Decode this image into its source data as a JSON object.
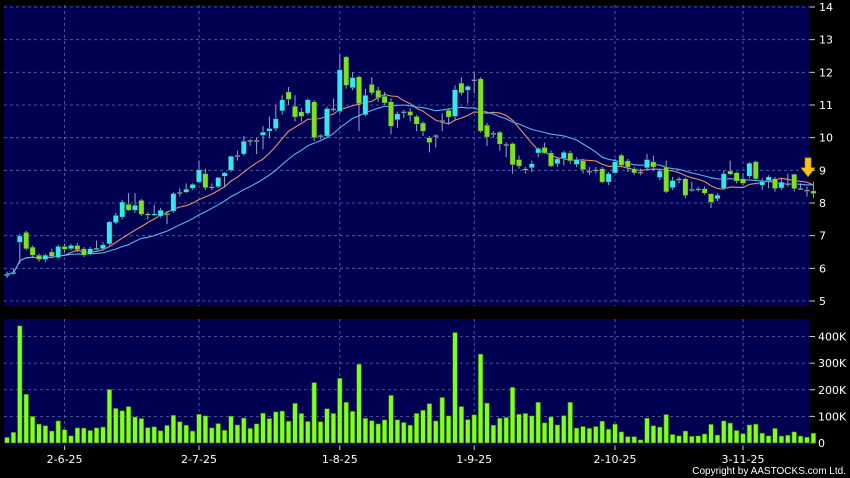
{
  "chart_data": {
    "type": "candlestick",
    "title": "",
    "price_axis": {
      "ylim": [
        5,
        14
      ],
      "ticks": [
        "5",
        "6",
        "7",
        "8",
        "9",
        "10",
        "11",
        "12",
        "13",
        "14"
      ],
      "side": "right",
      "grid": true
    },
    "volume_axis": {
      "ylim": [
        0,
        450
      ],
      "ticks": [
        {
          "value": 0,
          "label": "0"
        },
        {
          "value": 100,
          "label": "100K"
        },
        {
          "value": 200,
          "label": "200K"
        },
        {
          "value": 300,
          "label": "300K"
        },
        {
          "value": 400,
          "label": "400K"
        }
      ],
      "side": "right",
      "grid": true
    },
    "x_ticks": [
      {
        "date": "2025-06-02",
        "label": "2-6-25"
      },
      {
        "date": "2025-07-02",
        "label": "2-7-25"
      },
      {
        "date": "2025-08-01",
        "label": "1-8-25"
      },
      {
        "date": "2025-09-01",
        "label": "1-9-25"
      },
      {
        "date": "2025-10-02",
        "label": "2-10-25"
      },
      {
        "date": "2025-11-03",
        "label": "3-11-25"
      }
    ],
    "moving_averages": [
      {
        "period": 10,
        "color": "#e8906a"
      },
      {
        "period": 20,
        "color": "#5ab4f0"
      }
    ],
    "colors": {
      "up": "#33e8f2",
      "down": "#7fe021",
      "doji": "#9aa6c8",
      "volume": "#80ff20",
      "panel": "#000052",
      "grid": "#5a6aa8",
      "marker": "#ffc400"
    },
    "last_marker": "arrow-down",
    "candle_fields": [
      "date",
      "open",
      "high",
      "low",
      "close",
      "volume_k"
    ],
    "candles": [
      [
        "2025-05-20",
        5.8,
        5.9,
        5.7,
        5.82,
        21
      ],
      [
        "2025-05-21",
        5.85,
        6.0,
        5.8,
        5.88,
        40
      ],
      [
        "2025-05-22",
        6.8,
        7.05,
        6.14,
        6.99,
        440
      ],
      [
        "2025-05-23",
        7.1,
        7.15,
        6.55,
        6.6,
        183
      ],
      [
        "2025-05-26",
        6.65,
        6.7,
        6.35,
        6.4,
        100
      ],
      [
        "2025-05-27",
        6.4,
        6.45,
        6.2,
        6.27,
        71
      ],
      [
        "2025-05-28",
        6.27,
        6.45,
        6.2,
        6.4,
        65
      ],
      [
        "2025-05-29",
        6.5,
        6.6,
        6.3,
        6.37,
        45
      ],
      [
        "2025-05-30",
        6.33,
        6.72,
        6.3,
        6.67,
        83
      ],
      [
        "2025-06-02",
        6.67,
        6.75,
        6.5,
        6.58,
        50
      ],
      [
        "2025-06-03",
        6.6,
        6.75,
        6.55,
        6.7,
        27
      ],
      [
        "2025-06-04",
        6.7,
        6.78,
        6.5,
        6.57,
        57
      ],
      [
        "2025-06-05",
        6.6,
        6.65,
        6.35,
        6.4,
        56
      ],
      [
        "2025-06-06",
        6.43,
        6.65,
        6.4,
        6.6,
        47
      ],
      [
        "2025-06-09",
        6.6,
        6.85,
        6.55,
        6.62,
        57
      ],
      [
        "2025-06-10",
        6.6,
        6.8,
        6.55,
        6.72,
        60
      ],
      [
        "2025-06-11",
        6.75,
        7.45,
        6.7,
        7.42,
        201
      ],
      [
        "2025-06-12",
        7.4,
        7.7,
        7.35,
        7.62,
        130
      ],
      [
        "2025-06-13",
        7.57,
        8.1,
        7.5,
        8.03,
        121
      ],
      [
        "2025-06-16",
        7.96,
        8.3,
        7.75,
        7.78,
        137
      ],
      [
        "2025-06-17",
        7.78,
        8.3,
        7.7,
        7.93,
        98
      ],
      [
        "2025-06-18",
        8.08,
        8.12,
        7.6,
        7.65,
        92
      ],
      [
        "2025-06-19",
        7.67,
        7.72,
        7.5,
        7.65,
        58
      ],
      [
        "2025-06-20",
        7.65,
        7.95,
        7.6,
        7.67,
        61
      ],
      [
        "2025-06-23",
        7.6,
        7.85,
        7.55,
        7.78,
        46
      ],
      [
        "2025-06-24",
        7.68,
        7.75,
        7.35,
        7.66,
        66
      ],
      [
        "2025-06-25",
        7.75,
        8.33,
        7.7,
        8.29,
        104
      ],
      [
        "2025-06-26",
        8.33,
        8.45,
        8.2,
        8.33,
        80
      ],
      [
        "2025-06-27",
        8.33,
        8.6,
        8.3,
        8.42,
        67
      ],
      [
        "2025-06-30",
        8.45,
        8.6,
        8.4,
        8.57,
        45
      ],
      [
        "2025-07-02",
        8.64,
        9.3,
        8.6,
        9.02,
        108
      ],
      [
        "2025-07-03",
        8.9,
        9.05,
        8.4,
        8.47,
        102
      ],
      [
        "2025-07-04",
        8.5,
        8.6,
        8.4,
        8.5,
        57
      ],
      [
        "2025-07-07",
        8.5,
        8.8,
        8.45,
        8.78,
        73
      ],
      [
        "2025-07-08",
        8.82,
        8.95,
        8.5,
        8.92,
        48
      ],
      [
        "2025-07-09",
        9.0,
        9.45,
        8.95,
        9.43,
        101
      ],
      [
        "2025-07-10",
        9.46,
        9.6,
        9.3,
        9.46,
        68
      ],
      [
        "2025-07-11",
        9.5,
        10.05,
        9.45,
        9.89,
        94
      ],
      [
        "2025-07-14",
        9.92,
        9.95,
        9.75,
        9.92,
        55
      ],
      [
        "2025-07-15",
        9.92,
        10.0,
        9.5,
        9.92,
        72
      ],
      [
        "2025-07-16",
        10.07,
        10.35,
        9.65,
        10.17,
        112
      ],
      [
        "2025-07-17",
        10.2,
        10.65,
        10.0,
        10.28,
        92
      ],
      [
        "2025-07-18",
        10.28,
        11.0,
        10.2,
        10.58,
        117
      ],
      [
        "2025-07-21",
        10.82,
        11.3,
        10.7,
        11.16,
        120
      ],
      [
        "2025-07-22",
        11.4,
        11.55,
        11.0,
        11.17,
        82
      ],
      [
        "2025-07-23",
        10.96,
        11.3,
        10.5,
        10.63,
        149
      ],
      [
        "2025-07-24",
        10.79,
        10.9,
        10.5,
        10.65,
        111
      ],
      [
        "2025-07-25",
        10.75,
        11.2,
        10.7,
        11.16,
        81
      ],
      [
        "2025-07-28",
        11.1,
        11.15,
        9.9,
        10.0,
        227
      ],
      [
        "2025-07-29",
        10.07,
        10.1,
        9.95,
        10.07,
        80
      ],
      [
        "2025-07-30",
        10.05,
        10.95,
        10.0,
        10.89,
        129
      ],
      [
        "2025-07-31",
        10.89,
        11.2,
        10.8,
        10.89,
        111
      ],
      [
        "2025-08-01",
        10.8,
        12.55,
        10.75,
        12.08,
        243
      ],
      [
        "2025-08-04",
        12.47,
        12.5,
        11.5,
        11.6,
        153
      ],
      [
        "2025-08-05",
        11.53,
        12.0,
        11.45,
        11.84,
        119
      ],
      [
        "2025-08-06",
        11.86,
        11.9,
        10.2,
        11.04,
        296
      ],
      [
        "2025-08-07",
        10.7,
        11.5,
        10.65,
        11.3,
        93
      ],
      [
        "2025-08-08",
        11.63,
        11.85,
        11.3,
        11.37,
        84
      ],
      [
        "2025-08-11",
        11.45,
        11.55,
        11.1,
        11.22,
        72
      ],
      [
        "2025-08-12",
        11.27,
        11.4,
        11.0,
        11.06,
        87
      ],
      [
        "2025-08-13",
        11.1,
        11.2,
        10.1,
        10.35,
        179
      ],
      [
        "2025-08-14",
        10.55,
        10.8,
        10.3,
        10.73,
        87
      ],
      [
        "2025-08-15",
        10.8,
        10.85,
        10.6,
        10.8,
        77
      ],
      [
        "2025-08-18",
        10.8,
        10.9,
        10.5,
        10.68,
        67
      ],
      [
        "2025-08-19",
        10.65,
        10.7,
        10.2,
        10.41,
        111
      ],
      [
        "2025-08-20",
        10.45,
        10.5,
        10.05,
        10.2,
        123
      ],
      [
        "2025-08-21",
        10.0,
        10.05,
        9.55,
        9.85,
        148
      ],
      [
        "2025-08-22",
        10.07,
        10.1,
        9.7,
        10.07,
        83
      ],
      [
        "2025-08-25",
        10.53,
        10.75,
        10.2,
        10.53,
        171
      ],
      [
        "2025-08-26",
        10.84,
        10.9,
        10.4,
        10.63,
        102
      ],
      [
        "2025-08-27",
        10.65,
        11.6,
        10.55,
        11.47,
        415
      ],
      [
        "2025-08-28",
        11.67,
        11.85,
        11.3,
        11.37,
        137
      ],
      [
        "2025-08-29",
        11.45,
        11.6,
        11.05,
        11.57,
        88
      ],
      [
        "2025-09-01",
        11.78,
        12.0,
        11.35,
        11.78,
        106
      ],
      [
        "2025-09-02",
        11.8,
        11.85,
        10.15,
        10.2,
        334
      ],
      [
        "2025-09-03",
        10.38,
        10.45,
        9.75,
        10.02,
        150
      ],
      [
        "2025-09-04",
        10.14,
        10.2,
        10.0,
        10.14,
        67
      ],
      [
        "2025-09-05",
        10.17,
        10.2,
        9.6,
        9.8,
        93
      ],
      [
        "2025-09-08",
        9.8,
        9.85,
        9.4,
        9.8,
        96
      ],
      [
        "2025-09-09",
        9.82,
        9.85,
        8.9,
        9.17,
        209
      ],
      [
        "2025-09-10",
        9.33,
        9.45,
        9.05,
        9.13,
        108
      ],
      [
        "2025-09-11",
        9.05,
        9.1,
        8.9,
        9.05,
        111
      ],
      [
        "2025-09-12",
        9.08,
        9.3,
        8.95,
        9.2,
        102
      ],
      [
        "2025-09-15",
        9.53,
        9.7,
        9.4,
        9.67,
        153
      ],
      [
        "2025-09-16",
        9.7,
        9.85,
        9.5,
        9.53,
        76
      ],
      [
        "2025-09-17",
        9.53,
        9.6,
        9.1,
        9.13,
        98
      ],
      [
        "2025-09-18",
        9.2,
        9.4,
        9.1,
        9.35,
        68
      ],
      [
        "2025-09-19",
        9.36,
        9.6,
        9.15,
        9.55,
        103
      ],
      [
        "2025-09-22",
        9.53,
        9.6,
        9.2,
        9.29,
        153
      ],
      [
        "2025-09-23",
        9.18,
        9.4,
        9.1,
        9.33,
        56
      ],
      [
        "2025-09-24",
        9.29,
        9.35,
        8.9,
        9.02,
        62
      ],
      [
        "2025-09-25",
        8.98,
        9.1,
        8.85,
        8.98,
        55
      ],
      [
        "2025-09-26",
        9.02,
        9.1,
        8.9,
        9.02,
        62
      ],
      [
        "2025-09-29",
        9.05,
        9.1,
        8.6,
        8.64,
        82
      ],
      [
        "2025-09-30",
        8.64,
        8.95,
        8.55,
        8.9,
        52
      ],
      [
        "2025-10-02",
        8.92,
        9.35,
        8.9,
        9.26,
        71
      ],
      [
        "2025-10-03",
        9.46,
        9.5,
        9.1,
        9.15,
        42
      ],
      [
        "2025-10-06",
        9.29,
        9.35,
        8.95,
        9.1,
        24
      ],
      [
        "2025-10-08",
        9.05,
        9.1,
        8.85,
        8.92,
        24
      ],
      [
        "2025-10-09",
        8.95,
        9.05,
        8.85,
        8.95,
        12
      ],
      [
        "2025-10-10",
        9.08,
        9.5,
        9.0,
        9.33,
        93
      ],
      [
        "2025-10-13",
        9.26,
        9.45,
        9.0,
        9.1,
        65
      ],
      [
        "2025-10-14",
        8.78,
        9.05,
        8.7,
        8.98,
        60
      ],
      [
        "2025-10-15",
        9.1,
        9.3,
        8.3,
        8.34,
        107
      ],
      [
        "2025-10-16",
        8.47,
        8.8,
        8.4,
        8.69,
        32
      ],
      [
        "2025-10-17",
        8.74,
        8.8,
        8.6,
        8.74,
        27
      ],
      [
        "2025-10-20",
        8.74,
        8.78,
        8.15,
        8.23,
        45
      ],
      [
        "2025-10-21",
        8.42,
        8.65,
        8.35,
        8.42,
        25
      ],
      [
        "2025-10-22",
        8.44,
        8.5,
        8.35,
        8.44,
        27
      ],
      [
        "2025-10-23",
        8.44,
        8.5,
        8.25,
        8.3,
        34
      ],
      [
        "2025-10-24",
        8.28,
        8.3,
        7.85,
        8.02,
        70
      ],
      [
        "2025-10-27",
        8.13,
        8.3,
        8.05,
        8.24,
        30
      ],
      [
        "2025-10-28",
        8.44,
        9.0,
        8.4,
        8.9,
        83
      ],
      [
        "2025-10-30",
        8.98,
        9.3,
        8.85,
        8.88,
        75
      ],
      [
        "2025-10-31",
        8.93,
        8.95,
        8.6,
        8.67,
        47
      ],
      [
        "2025-11-03",
        8.74,
        8.9,
        8.55,
        8.6,
        35
      ],
      [
        "2025-11-04",
        8.82,
        9.25,
        8.75,
        9.22,
        68
      ],
      [
        "2025-11-05",
        9.26,
        9.3,
        8.7,
        8.74,
        71
      ],
      [
        "2025-11-06",
        8.54,
        8.75,
        8.4,
        8.67,
        37
      ],
      [
        "2025-11-07",
        8.69,
        8.85,
        8.45,
        8.8,
        27
      ],
      [
        "2025-11-10",
        8.74,
        8.8,
        8.35,
        8.44,
        55
      ],
      [
        "2025-11-11",
        8.46,
        8.75,
        8.4,
        8.64,
        26
      ],
      [
        "2025-11-12",
        8.6,
        8.9,
        8.5,
        8.6,
        29
      ],
      [
        "2025-11-13",
        8.88,
        8.9,
        8.35,
        8.44,
        42
      ],
      [
        "2025-11-14",
        8.45,
        8.6,
        8.4,
        8.45,
        26
      ],
      [
        "2025-11-17",
        8.4,
        8.5,
        8.2,
        8.4,
        22
      ],
      [
        "2025-11-18",
        8.37,
        8.65,
        8.15,
        8.29,
        37
      ]
    ]
  },
  "footer": {
    "copyright": "Copyright by AASTOCKS.com Ltd."
  }
}
